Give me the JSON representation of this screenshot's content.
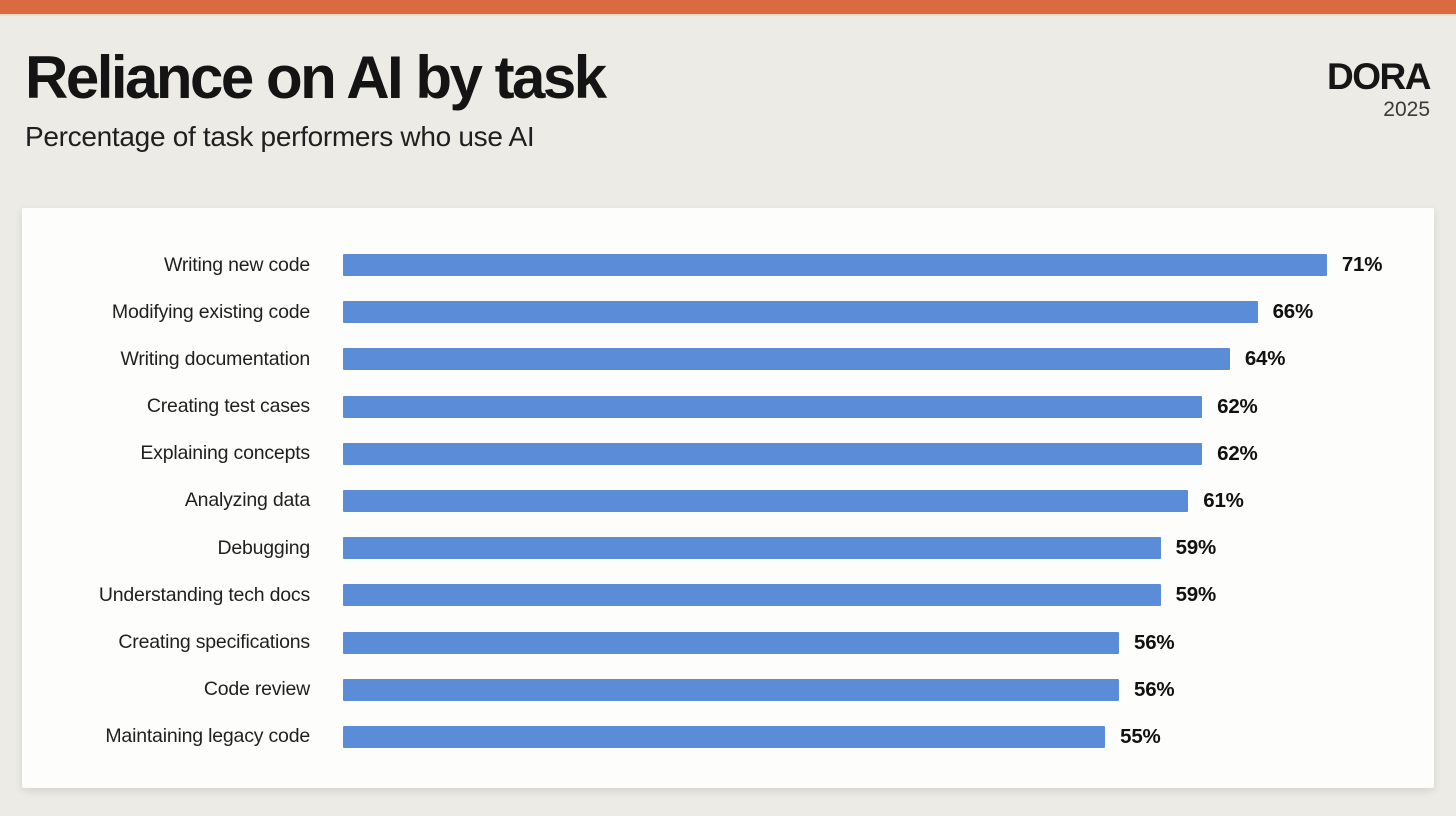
{
  "page": {
    "title": "Reliance on AI by task",
    "subtitle": "Percentage of task performers who use AI",
    "logo": "DORA",
    "logo_year": "2025"
  },
  "colors": {
    "accent_bar": "#DC6A41",
    "background": "#ECEBE5",
    "card": "#FDFDFB",
    "bar_fill": "#5B8CD8",
    "text": "#1C1C1C"
  },
  "chart_data": {
    "type": "bar",
    "orientation": "horizontal",
    "title": "Reliance on AI by task",
    "subtitle": "Percentage of task performers who use AI",
    "unit": "%",
    "categories": [
      "Writing new code",
      "Modifying existing code",
      "Writing documentation",
      "Creating test cases",
      "Explaining concepts",
      "Analyzing data",
      "Debugging",
      "Understanding tech docs",
      "Creating specifications",
      "Code review",
      "Maintaining legacy code"
    ],
    "values": [
      71,
      66,
      64,
      62,
      62,
      61,
      59,
      59,
      56,
      56,
      55
    ],
    "value_labels": [
      "71%",
      "66%",
      "64%",
      "62%",
      "62%",
      "61%",
      "59%",
      "59%",
      "56%",
      "56%",
      "55%"
    ],
    "layout_hints": {
      "scale_max": 77,
      "grid": false,
      "legend": false,
      "value_label_position": "right-of-bar",
      "category_label_position": "left-of-bar"
    }
  }
}
